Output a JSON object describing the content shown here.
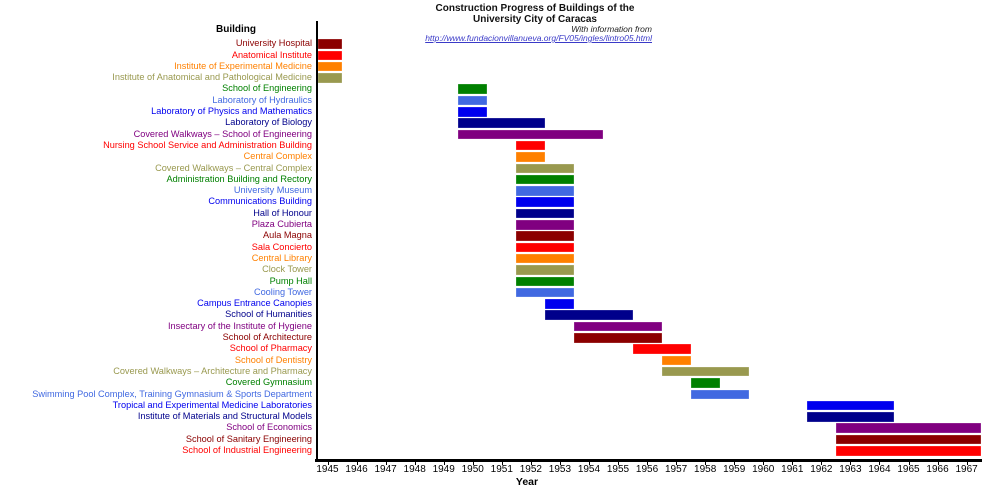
{
  "title": {
    "line1": "Construction Progress of Buildings of the",
    "line2": "University City of Caracas",
    "credit": "With information from",
    "link": "http://www.fundacionvillanueva.org/FV05/ingles/lintro05.html"
  },
  "chart_data": {
    "type": "bar",
    "variant": "gantt",
    "title": "Construction Progress of Buildings of the University City of Caracas",
    "xlabel": "Year",
    "col_header": "Building",
    "xlim": [
      1944.7,
      1967.5
    ],
    "x_ticks": [
      1945,
      1946,
      1947,
      1948,
      1949,
      1950,
      1951,
      1952,
      1953,
      1954,
      1955,
      1956,
      1957,
      1958,
      1959,
      1960,
      1961,
      1962,
      1963,
      1964,
      1965,
      1966,
      1967
    ],
    "grid": false,
    "legend": "none",
    "colors": {
      "darkred": "#8B0000",
      "red": "#FF0000",
      "orange": "#FF8000",
      "olive": "#99994F",
      "green": "#008000",
      "royalblue": "#4169E1",
      "blue": "#0000EE",
      "navy": "#00008B",
      "purple": "#800080"
    },
    "rows": [
      {
        "label": "University Hospital",
        "color": "darkred",
        "start": 1945,
        "end": 1945
      },
      {
        "label": "Anatomical Institute",
        "color": "red",
        "start": 1945,
        "end": 1945
      },
      {
        "label": "Institute of Experimental Medicine",
        "color": "orange",
        "start": 1945,
        "end": 1945
      },
      {
        "label": "Institute of Anatomical and Pathological Medicine",
        "color": "olive",
        "start": 1945,
        "end": 1945
      },
      {
        "label": "School of Engineering",
        "color": "green",
        "start": 1950,
        "end": 1950
      },
      {
        "label": "Laboratory of Hydraulics",
        "color": "royalblue",
        "start": 1950,
        "end": 1950
      },
      {
        "label": "Laboratory of Physics and Mathematics",
        "color": "blue",
        "start": 1950,
        "end": 1950
      },
      {
        "label": "Laboratory of Biology",
        "color": "navy",
        "start": 1950,
        "end": 1952
      },
      {
        "label": "Covered Walkways – School of Engineering",
        "color": "purple",
        "start": 1950,
        "end": 1954
      },
      {
        "label": "Nursing School Service and Administration Building",
        "color": "red",
        "start": 1952,
        "end": 1952
      },
      {
        "label": "Central Complex",
        "color": "orange",
        "start": 1952,
        "end": 1952
      },
      {
        "label": "Covered Walkways – Central Complex",
        "color": "olive",
        "start": 1952,
        "end": 1953
      },
      {
        "label": "Administration Building and Rectory",
        "color": "green",
        "start": 1952,
        "end": 1953
      },
      {
        "label": "University Museum",
        "color": "royalblue",
        "start": 1952,
        "end": 1953
      },
      {
        "label": "Communications Building",
        "color": "blue",
        "start": 1952,
        "end": 1953
      },
      {
        "label": "Hall of Honour",
        "color": "navy",
        "start": 1952,
        "end": 1953
      },
      {
        "label": "Plaza Cubierta",
        "color": "purple",
        "start": 1952,
        "end": 1953
      },
      {
        "label": "Aula Magna",
        "color": "darkred",
        "start": 1952,
        "end": 1953
      },
      {
        "label": "Sala Concierto",
        "color": "red",
        "start": 1952,
        "end": 1953
      },
      {
        "label": "Central Library",
        "color": "orange",
        "start": 1952,
        "end": 1953
      },
      {
        "label": "Clock Tower",
        "color": "olive",
        "start": 1952,
        "end": 1953
      },
      {
        "label": "Pump Hall",
        "color": "green",
        "start": 1952,
        "end": 1953
      },
      {
        "label": "Cooling Tower",
        "color": "royalblue",
        "start": 1952,
        "end": 1953
      },
      {
        "label": "Campus Entrance Canopies",
        "color": "blue",
        "start": 1953,
        "end": 1953
      },
      {
        "label": "School of Humanities",
        "color": "navy",
        "start": 1953,
        "end": 1955
      },
      {
        "label": "Insectary of the Institute of Hygiene",
        "color": "purple",
        "start": 1954,
        "end": 1956
      },
      {
        "label": "School of Architecture",
        "color": "darkred",
        "start": 1954,
        "end": 1956
      },
      {
        "label": "School of Pharmacy",
        "color": "red",
        "start": 1956,
        "end": 1957
      },
      {
        "label": "School of Dentistry",
        "color": "orange",
        "start": 1957,
        "end": 1957
      },
      {
        "label": "Covered Walkways – Architecture and Pharmacy",
        "color": "olive",
        "start": 1957,
        "end": 1959
      },
      {
        "label": "Covered Gymnasium",
        "color": "green",
        "start": 1958,
        "end": 1958
      },
      {
        "label": "Swimming Pool Complex, Training Gymnasium & Sports Department",
        "color": "royalblue",
        "start": 1958,
        "end": 1959
      },
      {
        "label": "Tropical and Experimental Medicine Laboratories",
        "color": "blue",
        "start": 1962,
        "end": 1964
      },
      {
        "label": "Institute of Materials and Structural Models",
        "color": "navy",
        "start": 1962,
        "end": 1964
      },
      {
        "label": "School of Economics",
        "color": "purple",
        "start": 1963,
        "end": 1967
      },
      {
        "label": "School of Sanitary Engineering",
        "color": "darkred",
        "start": 1963,
        "end": 1967
      },
      {
        "label": "School of Industrial Engineering",
        "color": "red",
        "start": 1963,
        "end": 1967
      }
    ]
  }
}
